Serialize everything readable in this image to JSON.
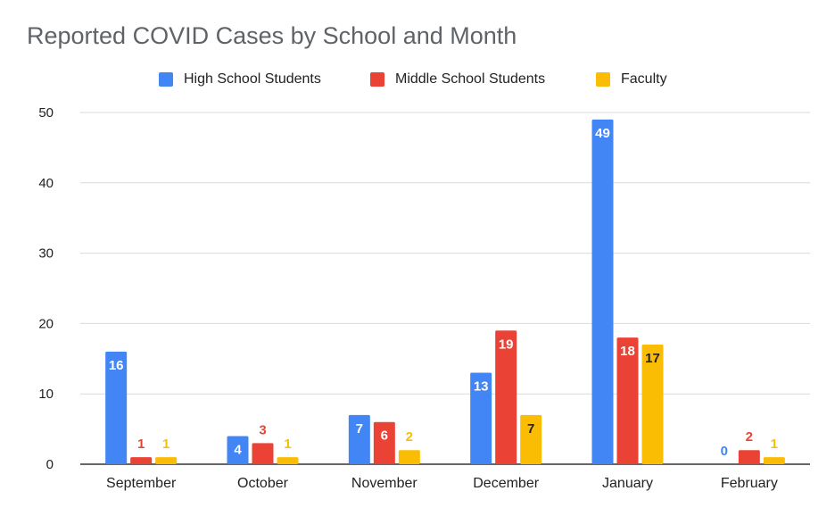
{
  "chart_data": {
    "type": "bar",
    "title": "Reported COVID Cases by School and Month",
    "xlabel": "",
    "ylabel": "",
    "ylim": [
      0,
      50
    ],
    "yticks": [
      0,
      10,
      20,
      30,
      40,
      50
    ],
    "categories": [
      "September",
      "October",
      "November",
      "December",
      "January",
      "February"
    ],
    "series": [
      {
        "name": "High School Students",
        "color": "#4285f4",
        "values": [
          16,
          4,
          7,
          13,
          49,
          0
        ]
      },
      {
        "name": "Middle School Students",
        "color": "#ea4335",
        "values": [
          1,
          3,
          6,
          19,
          18,
          2
        ]
      },
      {
        "name": "Faculty",
        "color": "#fbbc04",
        "values": [
          1,
          1,
          2,
          7,
          17,
          1
        ]
      }
    ],
    "legend_position": "top",
    "grid": true
  }
}
